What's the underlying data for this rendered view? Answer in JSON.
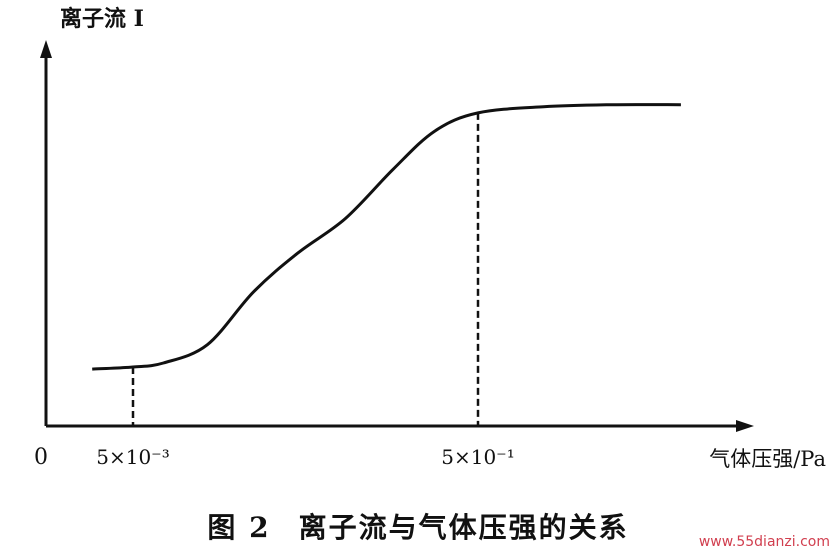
{
  "chart_data": {
    "type": "line",
    "ylabel": "离子流 I",
    "xlabel": "气体压强/Pa",
    "origin_label": "0",
    "x_ticks": [
      {
        "value": 0.005,
        "label": "5×10⁻³"
      },
      {
        "value": 0.5,
        "label": "5×10⁻¹"
      }
    ],
    "x_scale": "log",
    "series": [
      {
        "points": [
          {
            "x": 0.0029,
            "y": 0.28
          },
          {
            "x": 0.005,
            "y": 0.29
          },
          {
            "x": 0.0075,
            "y": 0.31
          },
          {
            "x": 0.0135,
            "y": 0.4
          },
          {
            "x": 0.025,
            "y": 0.66
          },
          {
            "x": 0.045,
            "y": 0.85
          },
          {
            "x": 0.085,
            "y": 1.02
          },
          {
            "x": 0.16,
            "y": 1.26
          },
          {
            "x": 0.28,
            "y": 1.45
          },
          {
            "x": 0.5,
            "y": 1.54
          },
          {
            "x": 1.2,
            "y": 1.57
          },
          {
            "x": 3.0,
            "y": 1.58
          },
          {
            "x": 7.5,
            "y": 1.58
          }
        ]
      }
    ],
    "reference_lines": [
      0.005,
      0.5
    ],
    "ylim": [
      0,
      1.8
    ]
  },
  "caption": {
    "figure_number": "图 2",
    "text": "离子流与气体压强的关系"
  },
  "watermark": "www.55dianzi.com"
}
